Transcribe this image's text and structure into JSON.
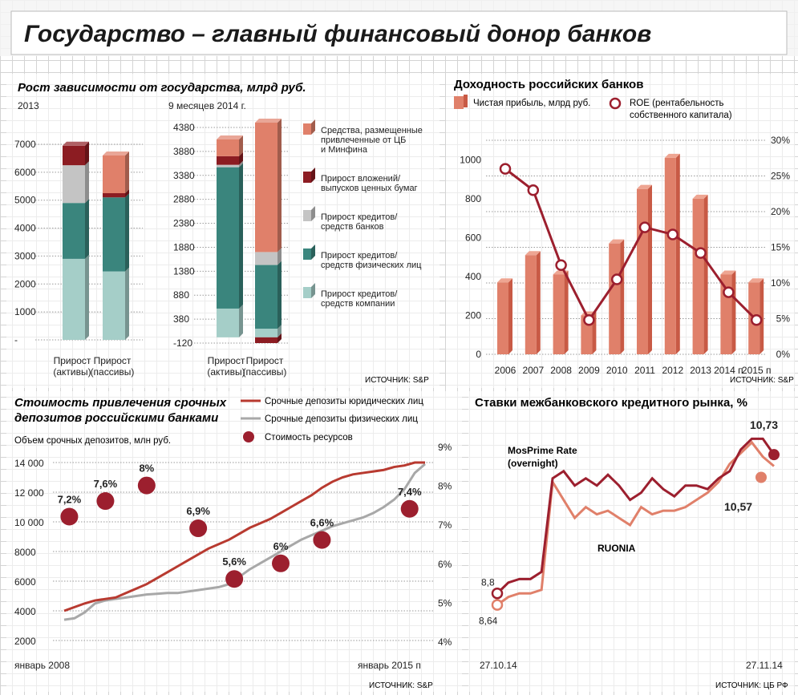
{
  "title": "Государство – главный финансовый донор банков",
  "colors": {
    "salmon": "#e0806a",
    "darkred": "#8c1c22",
    "grey": "#c4c4c4",
    "teal": "#3a857d",
    "lightteal": "#a5cec8",
    "line_red": "#b83a30",
    "line_grey": "#a8a8a8",
    "dot": "#9c1f2e",
    "title_bg": "#f4f4f4"
  },
  "panel1": {
    "title": "Рост зависимости от государства, млрд руб.",
    "period_2013": "2013",
    "period_2014": "9 месяцев 2014 г.",
    "legend": [
      {
        "color": "#e0806a",
        "lines": [
          "Средства, размещенные",
          "привлеченные от ЦБ",
          "и Минфина"
        ]
      },
      {
        "color": "#8c1c22",
        "lines": [
          "Прирост вложений/",
          "выпусков ценных бумаг"
        ]
      },
      {
        "color": "#c4c4c4",
        "lines": [
          "Прирост кредитов/",
          "средств банков"
        ]
      },
      {
        "color": "#3a857d",
        "lines": [
          "Прирост кредитов/",
          "средств физических лиц"
        ]
      },
      {
        "color": "#a5cec8",
        "lines": [
          "Прирост кредитов/",
          "средств компании"
        ]
      }
    ],
    "source": "ИСТОЧНИК: S&P",
    "chart_data": [
      {
        "type": "bar",
        "title": "2013",
        "stacked": true,
        "yticks": [
          "7000",
          "6000",
          "5000",
          "4000",
          "3000",
          "2000",
          "1000",
          "-"
        ],
        "ytick_values": [
          7000,
          6000,
          5000,
          4000,
          3000,
          2000,
          1000,
          0
        ],
        "ylim": [
          0,
          7000
        ],
        "categories": [
          [
            "Прирост",
            "(активы)"
          ],
          [
            "Прирост",
            "(пассивы)"
          ]
        ],
        "series": [
          {
            "name": "Прирост кредитов/средств компании",
            "color": "#a5cec8",
            "values": [
              2900,
              2450
            ]
          },
          {
            "name": "Прирост кредитов/средств физических лиц",
            "color": "#3a857d",
            "values": [
              2000,
              2650
            ]
          },
          {
            "name": "Прирост кредитов/средств банков",
            "color": "#c4c4c4",
            "values": [
              1350,
              0
            ]
          },
          {
            "name": "Прирост вложений/выпусков ценных бумаг",
            "color": "#8c1c22",
            "values": [
              700,
              150
            ]
          },
          {
            "name": "Средства, размещенные/привлеченные от ЦБ и Минфина",
            "color": "#e0806a",
            "values": [
              0,
              1350
            ]
          }
        ]
      },
      {
        "type": "bar",
        "title": "9 месяцев 2014 г.",
        "stacked": true,
        "yticks": [
          "4380",
          "3880",
          "3380",
          "2880",
          "2380",
          "1880",
          "1380",
          "880",
          "380",
          "-120"
        ],
        "ytick_values": [
          4380,
          3880,
          3380,
          2880,
          2380,
          1880,
          1380,
          880,
          380,
          -120
        ],
        "ylim": [
          -120,
          4380
        ],
        "categories": [
          [
            "Прирост",
            "(активы)"
          ],
          [
            "Прирост",
            "(пассивы)"
          ]
        ],
        "series": [
          {
            "name": "Прирост кредитов/средств компании",
            "color": "#a5cec8",
            "values": [
              600,
              180
            ]
          },
          {
            "name": "Прирост кредитов/средств физических лиц",
            "color": "#3a857d",
            "values": [
              2950,
              1330
            ]
          },
          {
            "name": "Прирост кредитов/средств банков",
            "color": "#c4c4c4",
            "values": [
              50,
              270
            ]
          },
          {
            "name": "Прирост вложений/выпусков ценных бумаг",
            "color": "#8c1c22",
            "values": [
              180,
              -120
            ]
          },
          {
            "name": "Средства, размещенные/привлеченные от ЦБ и Минфина",
            "color": "#e0806a",
            "values": [
              350,
              2700
            ]
          }
        ]
      }
    ]
  },
  "panel2": {
    "title": "Доходность российских банков",
    "legend_bar": "Чистая прибыль, млрд руб.",
    "legend_line": [
      "ROE (рентабельность",
      "собственного капитала)"
    ],
    "source": "ИСТОЧНИК: S&P",
    "chart_data": {
      "type": "bar",
      "categories": [
        "2006",
        "2007",
        "2008",
        "2009",
        "2010",
        "2011",
        "2012",
        "2013",
        "2014 п",
        "2015 п"
      ],
      "series": [
        {
          "name": "Чистая прибыль, млрд руб.",
          "axis": "left",
          "values": [
            370,
            510,
            410,
            200,
            570,
            850,
            1010,
            800,
            410,
            370
          ]
        },
        {
          "name": "ROE (рентабельность собственного капитала)",
          "type": "line",
          "axis": "right",
          "values": [
            26,
            23,
            12.5,
            4.8,
            10.5,
            17.8,
            16.8,
            14.2,
            8.7,
            4.8
          ]
        }
      ],
      "yticks_left": [
        "1000",
        "800",
        "600",
        "400",
        "200",
        "0"
      ],
      "ytick_left_values": [
        1000,
        800,
        600,
        400,
        200,
        0
      ],
      "yticks_right": [
        "30%",
        "25%",
        "20%",
        "15%",
        "10%",
        "5%",
        "0%"
      ],
      "ytick_right_values": [
        30,
        25,
        20,
        15,
        10,
        5,
        0
      ],
      "ylim_left": [
        0,
        1100
      ],
      "ylim_right": [
        0,
        30
      ]
    }
  },
  "panel3": {
    "title": [
      "Стоимость привлечения срочных",
      "депозитов российскими банками"
    ],
    "legend": [
      "Срочные депозиты юридических лиц",
      "Срочные депозиты физических лиц",
      "Стоимость ресурсов"
    ],
    "ylabel": "Объем срочных депозитов, млн руб.",
    "x_start": "январь 2008",
    "x_end": "январь 2015 п",
    "source": "ИСТОЧНИК: S&P",
    "chart_data": {
      "type": "line",
      "yticks_left": [
        "14 000",
        "12 000",
        "10 000",
        "8000",
        "6000",
        "4000",
        "2000"
      ],
      "ytick_left_values": [
        14000,
        12000,
        10000,
        8000,
        6000,
        4000,
        2000
      ],
      "yticks_right": [
        "9%",
        "8%",
        "7%",
        "6%",
        "5%",
        "4%"
      ],
      "ytick_right_values": [
        9,
        8,
        7,
        6,
        5,
        4
      ],
      "ylim_left": [
        2000,
        14500
      ],
      "ylim_right": [
        4,
        9
      ],
      "x_range": [
        2008,
        2015
      ],
      "series": [
        {
          "name": "Срочные депозиты юридических лиц",
          "x": [
            2008,
            2008.2,
            2008.4,
            2008.6,
            2008.8,
            2009,
            2009.2,
            2009.4,
            2009.6,
            2009.8,
            2010,
            2010.2,
            2010.4,
            2010.6,
            2010.8,
            2011,
            2011.2,
            2011.4,
            2011.6,
            2011.8,
            2012,
            2012.2,
            2012.4,
            2012.6,
            2012.8,
            2013,
            2013.2,
            2013.4,
            2013.6,
            2013.8,
            2014,
            2014.2,
            2014.4,
            2014.6,
            2014.8,
            2015
          ],
          "values": [
            4000,
            4250,
            4500,
            4700,
            4800,
            4900,
            5200,
            5500,
            5800,
            6200,
            6600,
            7000,
            7400,
            7800,
            8200,
            8500,
            8800,
            9200,
            9600,
            9900,
            10200,
            10600,
            11000,
            11400,
            11800,
            12300,
            12700,
            13000,
            13200,
            13300,
            13400,
            13500,
            13700,
            13800,
            14000,
            14000
          ]
        },
        {
          "name": "Срочные депозиты физических лиц",
          "x": [
            2008,
            2008.2,
            2008.4,
            2008.6,
            2008.8,
            2009,
            2009.2,
            2009.4,
            2009.6,
            2009.8,
            2010,
            2010.2,
            2010.4,
            2010.6,
            2010.8,
            2011,
            2011.2,
            2011.4,
            2011.6,
            2011.8,
            2012,
            2012.2,
            2012.4,
            2012.6,
            2012.8,
            2013,
            2013.2,
            2013.4,
            2013.6,
            2013.8,
            2014,
            2014.2,
            2014.4,
            2014.6,
            2014.8,
            2015
          ],
          "values": [
            3400,
            3500,
            3900,
            4500,
            4700,
            4800,
            4900,
            5000,
            5100,
            5150,
            5200,
            5200,
            5300,
            5400,
            5500,
            5600,
            5800,
            6300,
            6800,
            7200,
            7600,
            8000,
            8400,
            8800,
            9100,
            9400,
            9700,
            9900,
            10100,
            10300,
            10600,
            11000,
            11500,
            12200,
            13300,
            13900
          ]
        },
        {
          "name": "Стоимость ресурсов",
          "type": "scatter",
          "axis": "right",
          "points": [
            {
              "x": 2008.1,
              "y": 7.2,
              "label": "7,2%"
            },
            {
              "x": 2008.8,
              "y": 7.6,
              "label": "7,6%"
            },
            {
              "x": 2009.6,
              "y": 8.0,
              "label": "8%"
            },
            {
              "x": 2010.6,
              "y": 6.9,
              "label": "6,9%"
            },
            {
              "x": 2011.3,
              "y": 5.6,
              "label": "5,6%"
            },
            {
              "x": 2012.2,
              "y": 6.0,
              "label": "6%"
            },
            {
              "x": 2013.0,
              "y": 6.6,
              "label": "6,6%"
            },
            {
              "x": 2014.7,
              "y": 7.4,
              "label": "7,4%"
            }
          ]
        }
      ]
    }
  },
  "panel4": {
    "title": "Ставки межбанковского кредитного рынка, %",
    "label_mosprime": [
      "MosPrime Rate",
      "(overnight)"
    ],
    "label_ruonia": "RUONIA",
    "x_start": "27.10.14",
    "x_end": "27.11.14",
    "source": "ИСТОЧНИК: ЦБ РФ",
    "chart_data": {
      "type": "line",
      "ylim": [
        8,
        11.2
      ],
      "series": [
        {
          "name": "MosPrime Rate (overnight)",
          "values": [
            8.8,
            8.95,
            9.0,
            9.0,
            9.1,
            10.4,
            10.5,
            10.3,
            10.4,
            10.3,
            10.45,
            10.3,
            10.1,
            10.2,
            10.4,
            10.25,
            10.15,
            10.3,
            10.3,
            10.25,
            10.4,
            10.5,
            10.8,
            10.95,
            10.95,
            10.73
          ],
          "annotations": [
            {
              "index": 0,
              "label": "8,8"
            },
            {
              "index": 25,
              "label": "10,73"
            }
          ]
        },
        {
          "name": "RUONIA",
          "values": [
            8.64,
            8.75,
            8.8,
            8.8,
            8.85,
            10.35,
            10.1,
            9.85,
            10.0,
            9.9,
            9.95,
            9.85,
            9.75,
            10.0,
            9.9,
            9.95,
            9.95,
            10.0,
            10.1,
            10.2,
            10.35,
            10.6,
            10.75,
            10.9,
            10.7,
            10.57
          ],
          "annotations": [
            {
              "index": 0,
              "label": "8,64"
            },
            {
              "index": 25,
              "label": "10,57"
            }
          ]
        }
      ]
    }
  }
}
